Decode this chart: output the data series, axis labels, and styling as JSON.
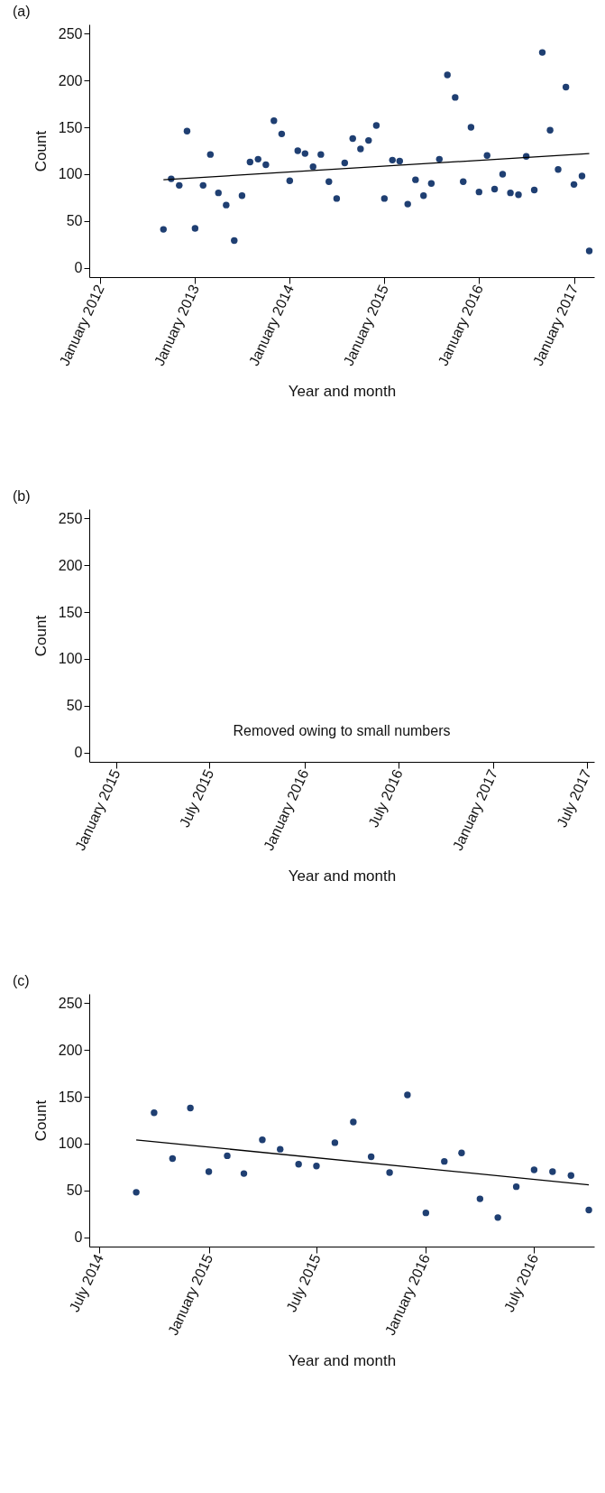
{
  "chart_data": [
    {
      "type": "scatter",
      "title": "(a)",
      "xlabel": "Year and month",
      "ylabel": "Count",
      "grid": false,
      "xlim": [
        "2011-11-20",
        "2017-03-20"
      ],
      "ylim": [
        -10,
        260
      ],
      "yticks": [
        0,
        50,
        100,
        150,
        200,
        250
      ],
      "xticks": [
        {
          "value": "2012-01",
          "label": "January 2012"
        },
        {
          "value": "2013-01",
          "label": "January 2013"
        },
        {
          "value": "2014-01",
          "label": "January 2014"
        },
        {
          "value": "2015-01",
          "label": "January 2015"
        },
        {
          "value": "2016-01",
          "label": "January 2016"
        },
        {
          "value": "2017-01",
          "label": "January 2017"
        }
      ],
      "series": [
        {
          "type": "scatter",
          "marker": "circle",
          "color": "#1f3f72",
          "x": [
            "2012-09",
            "2012-10",
            "2012-11",
            "2012-12",
            "2013-01",
            "2013-02",
            "2013-03",
            "2013-04",
            "2013-05",
            "2013-06",
            "2013-07",
            "2013-08",
            "2013-09",
            "2013-10",
            "2013-11",
            "2013-12",
            "2014-01",
            "2014-02",
            "2014-03",
            "2014-04",
            "2014-05",
            "2014-06",
            "2014-07",
            "2014-08",
            "2014-09",
            "2014-10",
            "2014-11",
            "2014-12",
            "2015-01",
            "2015-02",
            "2015-03",
            "2015-04",
            "2015-05",
            "2015-06",
            "2015-07",
            "2015-08",
            "2015-09",
            "2015-10",
            "2015-11",
            "2015-12",
            "2016-01",
            "2016-02",
            "2016-03",
            "2016-04",
            "2016-05",
            "2016-06",
            "2016-07",
            "2016-08",
            "2016-09",
            "2016-10",
            "2016-11",
            "2016-12",
            "2017-01",
            "2017-02",
            "2017-03"
          ],
          "values": [
            41,
            95,
            88,
            146,
            42,
            88,
            121,
            80,
            67,
            29,
            77,
            113,
            116,
            110,
            157,
            143,
            93,
            125,
            122,
            108,
            121,
            92,
            74,
            112,
            138,
            127,
            136,
            152,
            74,
            115,
            114,
            68,
            94,
            77,
            90,
            116,
            206,
            182,
            92,
            150,
            81,
            120,
            84,
            100,
            80,
            78,
            119,
            83,
            230,
            147,
            105,
            193,
            89,
            98,
            18
          ]
        },
        {
          "type": "line",
          "color": "#000000",
          "x": [
            "2012-09",
            "2017-03"
          ],
          "values": [
            94,
            122
          ]
        }
      ]
    },
    {
      "type": "scatter",
      "title": "(b)",
      "xlabel": "Year and month",
      "ylabel": "Count",
      "grid": false,
      "xlim": [
        "2014-11-10",
        "2017-07-15"
      ],
      "ylim": [
        -10,
        260
      ],
      "yticks": [
        0,
        50,
        100,
        150,
        200,
        250
      ],
      "xticks": [
        {
          "value": "2015-01",
          "label": "January 2015"
        },
        {
          "value": "2015-07",
          "label": "July 2015"
        },
        {
          "value": "2016-01",
          "label": "January 2016"
        },
        {
          "value": "2016-07",
          "label": "July 2016"
        },
        {
          "value": "2017-01",
          "label": "January 2017"
        },
        {
          "value": "2017-07",
          "label": "July 2017"
        }
      ],
      "annotations": [
        "Removed owing to small numbers"
      ]
    },
    {
      "type": "scatter",
      "title": "(c)",
      "xlabel": "Year and month",
      "ylabel": "Count",
      "grid": false,
      "xlim": [
        "2014-06-14",
        "2016-10-10"
      ],
      "ylim": [
        -10,
        260
      ],
      "yticks": [
        0,
        50,
        100,
        150,
        200,
        250
      ],
      "xticks": [
        {
          "value": "2014-07",
          "label": "July 2014"
        },
        {
          "value": "2015-01",
          "label": "January 2015"
        },
        {
          "value": "2015-07",
          "label": "July 2015"
        },
        {
          "value": "2016-01",
          "label": "January 2016"
        },
        {
          "value": "2016-07",
          "label": "July 2016"
        }
      ],
      "series": [
        {
          "type": "scatter",
          "marker": "circle",
          "color": "#1f3f72",
          "x": [
            "2014-09",
            "2014-10",
            "2014-11",
            "2014-12",
            "2015-01",
            "2015-02",
            "2015-03",
            "2015-04",
            "2015-05",
            "2015-06",
            "2015-07",
            "2015-08",
            "2015-09",
            "2015-10",
            "2015-11",
            "2015-12",
            "2016-01",
            "2016-02",
            "2016-03",
            "2016-04",
            "2016-05",
            "2016-06",
            "2016-07",
            "2016-08",
            "2016-09",
            "2016-10"
          ],
          "values": [
            48,
            133,
            84,
            138,
            70,
            87,
            68,
            104,
            94,
            78,
            76,
            101,
            123,
            86,
            69,
            152,
            26,
            81,
            90,
            41,
            21,
            54,
            72,
            70,
            66,
            29
          ]
        },
        {
          "type": "line",
          "color": "#000000",
          "x": [
            "2014-09",
            "2016-10"
          ],
          "values": [
            104,
            56
          ]
        }
      ]
    }
  ]
}
